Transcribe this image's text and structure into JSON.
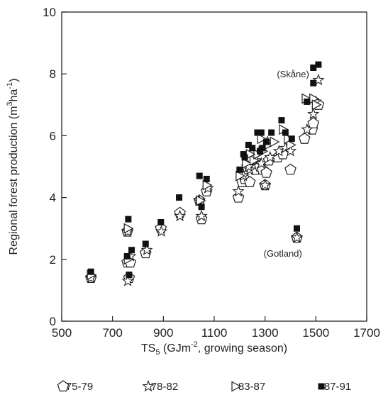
{
  "chart_data": {
    "type": "scatter",
    "xlabel": "TS5 (GJm-2, growing season)",
    "xlabel_parts": {
      "main": "TS",
      "sub": "5",
      "rest_a": " (GJm",
      "sup": "-2",
      "rest_b": ", growing season)"
    },
    "ylabel": "Regional forest production (m3ha-1)",
    "ylabel_parts": {
      "main": "Regional forest production (m",
      "sup1": "3",
      "mid": "ha",
      "sup2": "-1",
      "end": ")"
    },
    "xlim": [
      500,
      1700
    ],
    "ylim": [
      0,
      10
    ],
    "x_ticks": [
      500,
      700,
      900,
      1100,
      1300,
      1500,
      1700
    ],
    "y_ticks": [
      0,
      2,
      4,
      6,
      8,
      10
    ],
    "grid": false,
    "legend_position": "bottom",
    "annotations": [
      {
        "text": "(Skåne)",
        "x": 1410,
        "y": 8.0
      },
      {
        "text": "(Gotland)",
        "x": 1370,
        "y": 2.2
      }
    ],
    "series": [
      {
        "name": "75-79",
        "marker": "pentagon",
        "points": [
          [
            615,
            1.4
          ],
          [
            758,
            1.9
          ],
          [
            770,
            1.9
          ],
          [
            758,
            2.9
          ],
          [
            765,
            1.4
          ],
          [
            830,
            2.2
          ],
          [
            890,
            3.0
          ],
          [
            965,
            3.5
          ],
          [
            1042,
            3.9
          ],
          [
            1050,
            3.3
          ],
          [
            1070,
            4.2
          ],
          [
            1195,
            4.0
          ],
          [
            1210,
            4.5
          ],
          [
            1220,
            4.6
          ],
          [
            1240,
            4.5
          ],
          [
            1260,
            4.9
          ],
          [
            1280,
            5.0
          ],
          [
            1290,
            4.9
          ],
          [
            1305,
            4.8
          ],
          [
            1300,
            4.4
          ],
          [
            1350,
            5.3
          ],
          [
            1370,
            5.4
          ],
          [
            1400,
            4.9
          ],
          [
            1425,
            2.7
          ],
          [
            1455,
            5.9
          ],
          [
            1485,
            6.2
          ],
          [
            1490,
            6.4
          ],
          [
            1510,
            7.0
          ],
          [
            1230,
            5.0
          ],
          [
            1315,
            5.2
          ]
        ]
      },
      {
        "name": "78-82",
        "marker": "star",
        "points": [
          [
            615,
            1.4
          ],
          [
            760,
            1.3
          ],
          [
            760,
            2.9
          ],
          [
            770,
            2.1
          ],
          [
            835,
            2.3
          ],
          [
            892,
            2.9
          ],
          [
            965,
            3.4
          ],
          [
            1040,
            3.9
          ],
          [
            1050,
            3.4
          ],
          [
            1075,
            4.3
          ],
          [
            1195,
            4.2
          ],
          [
            1215,
            4.7
          ],
          [
            1240,
            4.9
          ],
          [
            1265,
            5.2
          ],
          [
            1285,
            5.1
          ],
          [
            1300,
            4.4
          ],
          [
            1320,
            5.3
          ],
          [
            1355,
            5.5
          ],
          [
            1380,
            5.6
          ],
          [
            1400,
            5.5
          ],
          [
            1425,
            2.7
          ],
          [
            1465,
            6.2
          ],
          [
            1490,
            6.7
          ],
          [
            1500,
            7.1
          ],
          [
            1510,
            7.8
          ],
          [
            1310,
            5.8
          ],
          [
            1235,
            5.0
          ]
        ]
      },
      {
        "name": "83-87",
        "marker": "triangle",
        "points": [
          [
            615,
            1.5
          ],
          [
            760,
            2.0
          ],
          [
            760,
            3.0
          ],
          [
            1045,
            3.9
          ],
          [
            1070,
            4.4
          ],
          [
            1200,
            4.7
          ],
          [
            1225,
            5.1
          ],
          [
            1255,
            5.2
          ],
          [
            1270,
            5.4
          ],
          [
            1290,
            5.5
          ],
          [
            1310,
            5.7
          ],
          [
            1335,
            5.8
          ],
          [
            1370,
            6.2
          ],
          [
            1400,
            5.7
          ],
          [
            1460,
            7.2
          ],
          [
            1490,
            7.2
          ],
          [
            1500,
            7.0
          ],
          [
            1240,
            5.4
          ],
          [
            1285,
            5.9
          ],
          [
            1390,
            5.9
          ]
        ]
      },
      {
        "name": "87-91",
        "marker": "square",
        "points": [
          [
            615,
            1.6
          ],
          [
            758,
            2.1
          ],
          [
            765,
            1.5
          ],
          [
            762,
            3.3
          ],
          [
            775,
            2.3
          ],
          [
            830,
            2.5
          ],
          [
            890,
            3.2
          ],
          [
            962,
            4.0
          ],
          [
            1042,
            4.7
          ],
          [
            1050,
            3.7
          ],
          [
            1070,
            4.6
          ],
          [
            1200,
            4.9
          ],
          [
            1215,
            5.4
          ],
          [
            1235,
            5.7
          ],
          [
            1250,
            5.6
          ],
          [
            1270,
            6.1
          ],
          [
            1285,
            6.1
          ],
          [
            1290,
            5.6
          ],
          [
            1305,
            5.8
          ],
          [
            1325,
            6.1
          ],
          [
            1365,
            6.5
          ],
          [
            1380,
            6.1
          ],
          [
            1405,
            5.9
          ],
          [
            1425,
            3.0
          ],
          [
            1465,
            7.1
          ],
          [
            1490,
            8.2
          ],
          [
            1490,
            7.7
          ],
          [
            1510,
            8.3
          ],
          [
            1280,
            5.5
          ],
          [
            1220,
            5.3
          ]
        ]
      }
    ]
  }
}
